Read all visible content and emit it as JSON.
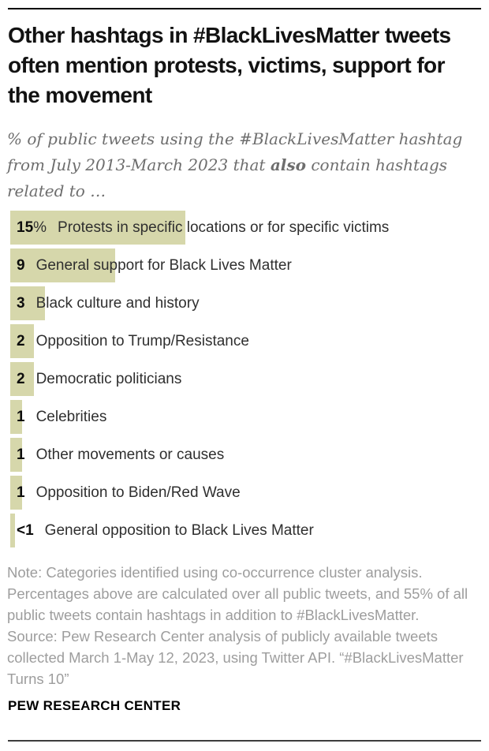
{
  "title": "Other hashtags in #BlackLivesMatter tweets often mention protests, victims, support for the movement",
  "subtitle": {
    "prefix": "% of public tweets using the #BlackLivesMatter hashtag from July 2013-March 2023 that ",
    "bold": "also",
    "suffix": " contain hashtags related to …"
  },
  "chart_data": {
    "type": "bar",
    "orientation": "horizontal",
    "title": "Other hashtags in #BlackLivesMatter tweets often mention protests, victims, support for the movement",
    "xlabel": "",
    "ylabel": "",
    "xlim": [
      0,
      40
    ],
    "grid": false,
    "legend": "none",
    "value_labels_inside_bars": true,
    "bar_color": "#d6d7ab",
    "bars": [
      {
        "value": 15,
        "value_label": "15",
        "value_suffix": "%",
        "category": "Protests in specific locations or for specific victims"
      },
      {
        "value": 9,
        "value_label": "9",
        "value_suffix": "",
        "category": "General support for Black Lives Matter"
      },
      {
        "value": 3,
        "value_label": "3",
        "value_suffix": "",
        "category": "Black culture and history"
      },
      {
        "value": 2,
        "value_label": "2",
        "value_suffix": "",
        "category": "Opposition to Trump/Resistance"
      },
      {
        "value": 2,
        "value_label": "2",
        "value_suffix": "",
        "category": "Democratic politicians"
      },
      {
        "value": 1,
        "value_label": "1",
        "value_suffix": "",
        "category": "Celebrities"
      },
      {
        "value": 1,
        "value_label": "1",
        "value_suffix": "",
        "category": "Other movements or causes"
      },
      {
        "value": 1,
        "value_label": "1",
        "value_suffix": "",
        "category": "Opposition to Biden/Red Wave"
      },
      {
        "value": 0.4,
        "value_label": "<1",
        "value_suffix": "",
        "category": "General opposition to Black Lives Matter"
      }
    ]
  },
  "note": "Note: Categories identified using co-occurrence cluster analysis. Percentages above are calculated over all public tweets, and 55% of all public tweets contain hashtags in addition to #BlackLivesMatter.",
  "source": "Source: Pew Research Center analysis of publicly available tweets collected March 1-May 12, 2023, using Twitter API. “#BlackLivesMatter Turns 10”",
  "footer": "PEW RESEARCH CENTER"
}
